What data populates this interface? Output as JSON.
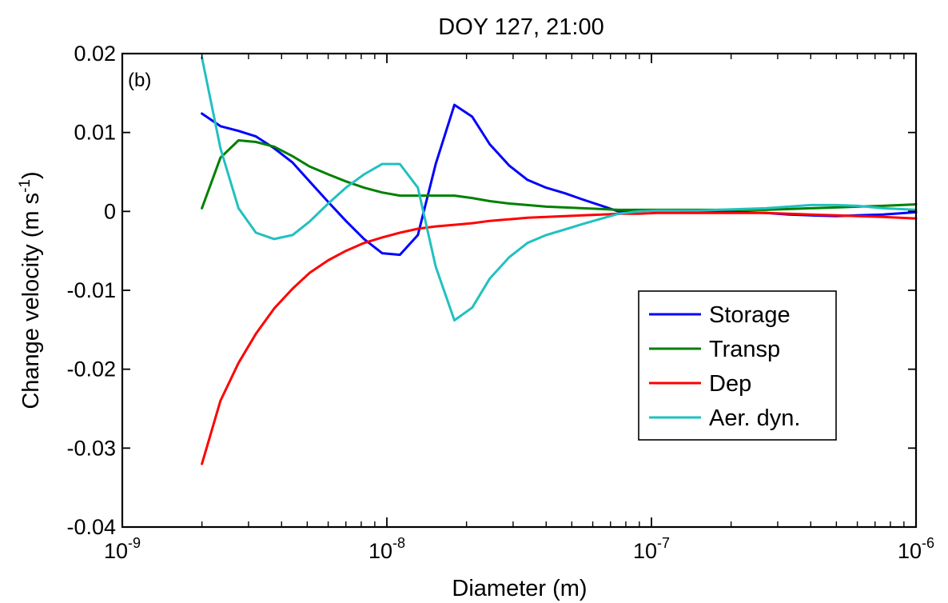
{
  "chart_data": {
    "type": "line",
    "title": "DOY 127, 21:00",
    "panel_label": "(b)",
    "xlabel": "Diameter (m)",
    "ylabel_main": "Change velocity (m s",
    "ylabel_sup": "-1",
    "ylabel_close": ")",
    "x_scale": "log",
    "xlim": [
      1e-09,
      1e-06
    ],
    "ylim": [
      -0.04,
      0.02
    ],
    "grid": false,
    "legend_position": "lower-right",
    "x_ticks": [
      {
        "base": "10",
        "exp": "-9",
        "value": 1e-09
      },
      {
        "base": "10",
        "exp": "-8",
        "value": 1e-08
      },
      {
        "base": "10",
        "exp": "-7",
        "value": 1e-07
      },
      {
        "base": "10",
        "exp": "-6",
        "value": 1e-06
      }
    ],
    "y_ticks": [
      {
        "label": "0.02",
        "value": 0.02
      },
      {
        "label": "0.01",
        "value": 0.01
      },
      {
        "label": "0",
        "value": 0
      },
      {
        "label": "-0.01",
        "value": -0.01
      },
      {
        "label": "-0.02",
        "value": -0.02
      },
      {
        "label": "-0.03",
        "value": -0.03
      },
      {
        "label": "-0.04",
        "value": -0.04
      }
    ],
    "x": [
      2e-09,
      2.35e-09,
      2.75e-09,
      3.2e-09,
      3.75e-09,
      4.4e-09,
      5.1e-09,
      6e-09,
      7e-09,
      8.2e-09,
      9.6e-09,
      1.12e-08,
      1.31e-08,
      1.53e-08,
      1.8e-08,
      2.1e-08,
      2.45e-08,
      2.9e-08,
      3.4e-08,
      4e-08,
      4.7e-08,
      5.5e-08,
      6.5e-08,
      7.5e-08,
      9e-08,
      1.05e-07,
      1.25e-07,
      1.5e-07,
      1.8e-07,
      2.2e-07,
      2.7e-07,
      3.3e-07,
      4e-07,
      5e-07,
      6e-07,
      7.5e-07,
      1e-06
    ],
    "series": [
      {
        "name": "Storage",
        "color": "#0000ff",
        "values": [
          0.0124,
          0.0108,
          0.0102,
          0.0095,
          0.008,
          0.0062,
          0.0038,
          0.0012,
          -0.0012,
          -0.0035,
          -0.0053,
          -0.0055,
          -0.003,
          0.006,
          0.0135,
          0.012,
          0.0085,
          0.0058,
          0.004,
          0.003,
          0.0023,
          0.0015,
          0.0007,
          0.0,
          0.0001,
          0.0001,
          0.0001,
          0.0,
          0.0,
          -0.0001,
          -0.0002,
          -0.0004,
          -0.0005,
          -0.0006,
          -0.0005,
          -0.0004,
          -0.0001
        ]
      },
      {
        "name": "Transp",
        "color": "#008000",
        "values": [
          0.0004,
          0.0068,
          0.009,
          0.0088,
          0.0082,
          0.007,
          0.0057,
          0.0047,
          0.0038,
          0.003,
          0.0024,
          0.002,
          0.002,
          0.002,
          0.002,
          0.0017,
          0.0013,
          0.001,
          0.0008,
          0.0006,
          0.0005,
          0.0004,
          0.0003,
          0.0002,
          0.0002,
          0.0002,
          0.0002,
          0.0002,
          0.0002,
          0.0002,
          0.0002,
          0.0003,
          0.0004,
          0.0005,
          0.0006,
          0.0007,
          0.0009
        ]
      },
      {
        "name": "Dep",
        "color": "#ff0000",
        "values": [
          -0.032,
          -0.024,
          -0.0192,
          -0.0155,
          -0.0123,
          -0.0098,
          -0.0078,
          -0.0062,
          -0.005,
          -0.004,
          -0.0033,
          -0.0027,
          -0.0022,
          -0.0019,
          -0.0017,
          -0.0015,
          -0.0012,
          -0.001,
          -0.0008,
          -0.0007,
          -0.0006,
          -0.0005,
          -0.0004,
          -0.0003,
          -0.0003,
          -0.0002,
          -0.0002,
          -0.0002,
          -0.0002,
          -0.0002,
          -0.0002,
          -0.0003,
          -0.0004,
          -0.0005,
          -0.0006,
          -0.0007,
          -0.0009
        ]
      },
      {
        "name": "Aer. dyn.",
        "color": "#22c0c0",
        "values": [
          0.0195,
          0.008,
          0.0004,
          -0.0027,
          -0.0035,
          -0.003,
          -0.0013,
          0.001,
          0.003,
          0.0047,
          0.006,
          0.006,
          0.003,
          -0.007,
          -0.0138,
          -0.0122,
          -0.0085,
          -0.0058,
          -0.004,
          -0.003,
          -0.0023,
          -0.0016,
          -0.0009,
          -0.0003,
          0.0,
          0.0001,
          0.0001,
          0.0001,
          0.0002,
          0.0003,
          0.0004,
          0.0006,
          0.0008,
          0.0008,
          0.0007,
          0.0004,
          0.0002
        ]
      }
    ]
  }
}
